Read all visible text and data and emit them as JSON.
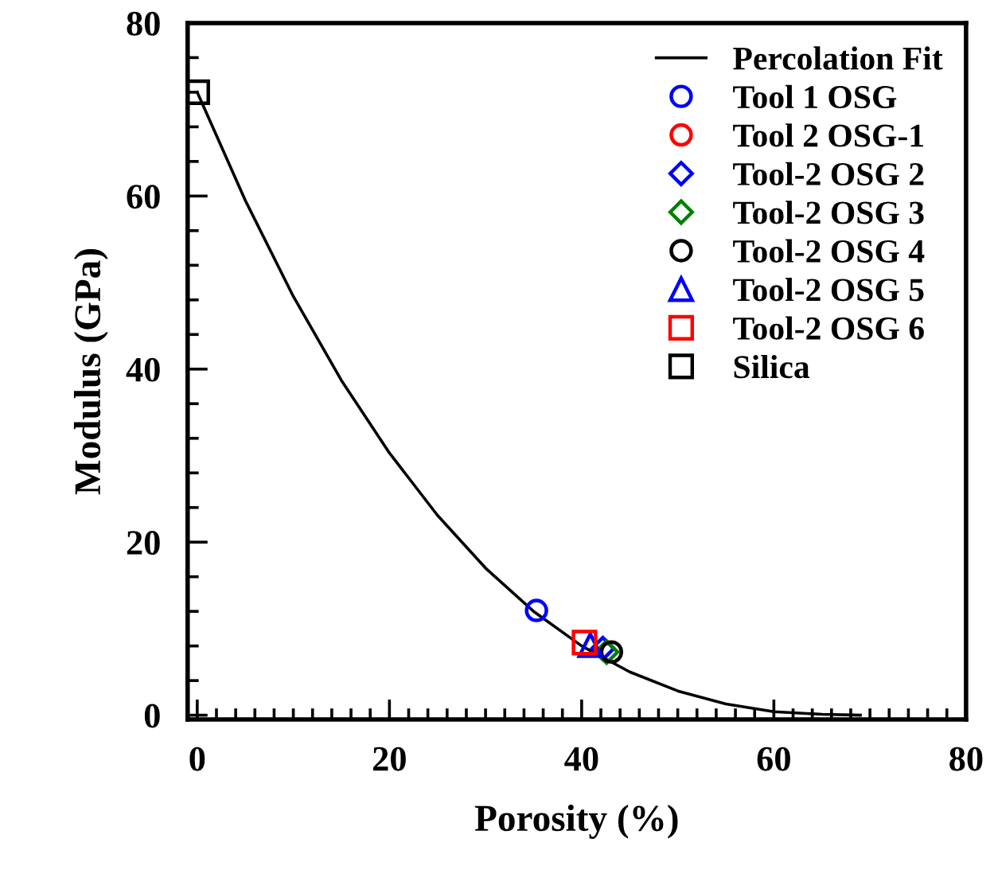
{
  "chart_data": {
    "type": "scatter",
    "xlabel": "Porosity (%)",
    "ylabel": "Modulus (GPa)",
    "xlim": [
      -1,
      80
    ],
    "ylim": [
      -0.5,
      80
    ],
    "xticks": [
      0,
      20,
      40,
      60,
      80
    ],
    "yticks": [
      0,
      20,
      40,
      60,
      80
    ],
    "grid": false,
    "legend": "top right",
    "series": [
      {
        "name": "Percolation Fit",
        "type": "line",
        "color": "#000000",
        "marker": "none",
        "line_style": "solid",
        "x": [
          0,
          5,
          10,
          15,
          20,
          25,
          30,
          35,
          40,
          45,
          50,
          55,
          60,
          65,
          69
        ],
        "values": [
          72,
          59.5,
          48.4,
          38.7,
          30.3,
          23.1,
          17.0,
          12.0,
          8.0,
          5.0,
          2.8,
          1.3,
          0.4,
          0.1,
          0
        ]
      },
      {
        "name": "Tool 1 OSG",
        "color": "#0000ff",
        "marker": "circle",
        "x": [
          35.3
        ],
        "values": [
          12.1
        ]
      },
      {
        "name": "Tool 2 OSG-1",
        "color": "#ff0000",
        "marker": "circle",
        "x": [
          null
        ],
        "values": [
          null
        ]
      },
      {
        "name": "Tool-2 OSG 2",
        "color": "#0000ff",
        "marker": "diamond",
        "x": [
          42.2
        ],
        "values": [
          7.7
        ]
      },
      {
        "name": "Tool-2 OSG 3",
        "color": "#008000",
        "marker": "diamond",
        "x": [
          42.6
        ],
        "values": [
          7.3
        ]
      },
      {
        "name": "Tool-2 OSG 4",
        "color": "#000000",
        "marker": "circle",
        "x": [
          43.1
        ],
        "values": [
          7.3
        ]
      },
      {
        "name": "Tool-2 OSG 5",
        "color": "#0000ff",
        "marker": "triangle",
        "x": [
          40.9
        ],
        "values": [
          8.1
        ]
      },
      {
        "name": "Tool-2 OSG 6",
        "color": "#ff0000",
        "marker": "square",
        "x": [
          40.3
        ],
        "values": [
          8.4
        ]
      },
      {
        "name": "Silica",
        "color": "#000000",
        "marker": "square",
        "x": [
          0
        ],
        "values": [
          72
        ]
      }
    ]
  }
}
